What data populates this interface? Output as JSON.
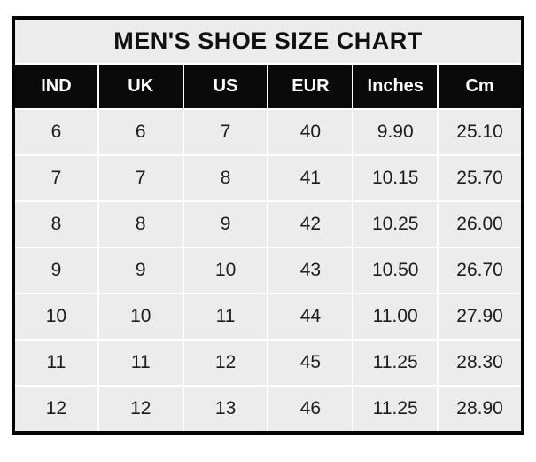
{
  "title": "MEN'S SHOE SIZE CHART",
  "colors": {
    "page_bg": "#ffffff",
    "outer_border": "#030303",
    "title_bg": "#ececec",
    "title_text": "#111111",
    "header_bg": "#0a0a0a",
    "header_text": "#ffffff",
    "cell_bg": "#ececec",
    "cell_text": "#1c1c1c",
    "gridline": "#ffffff"
  },
  "chart_data": {
    "type": "table",
    "title": "MEN'S SHOE SIZE CHART",
    "columns": [
      "IND",
      "UK",
      "US",
      "EUR",
      "Inches",
      "Cm"
    ],
    "rows": [
      [
        "6",
        "6",
        "7",
        "40",
        "9.90",
        "25.10"
      ],
      [
        "7",
        "7",
        "8",
        "41",
        "10.15",
        "25.70"
      ],
      [
        "8",
        "8",
        "9",
        "42",
        "10.25",
        "26.00"
      ],
      [
        "9",
        "9",
        "10",
        "43",
        "10.50",
        "26.70"
      ],
      [
        "10",
        "10",
        "11",
        "44",
        "11.00",
        "27.90"
      ],
      [
        "11",
        "11",
        "12",
        "45",
        "11.25",
        "28.30"
      ],
      [
        "12",
        "12",
        "13",
        "46",
        "11.25",
        "28.90"
      ]
    ],
    "layout": {
      "grid": true,
      "gridline_color": "white",
      "header_style": "black-background-white-text",
      "title_position": "top-center"
    }
  }
}
